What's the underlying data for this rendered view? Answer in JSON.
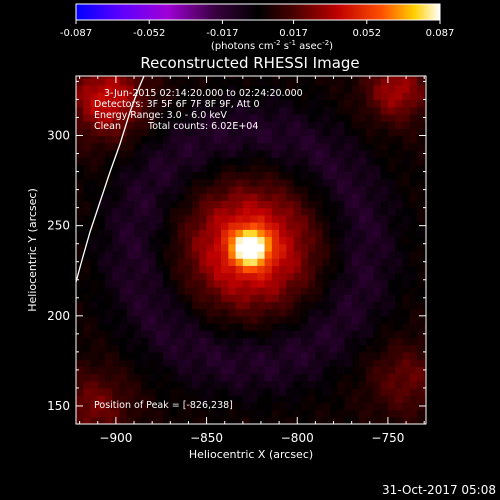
{
  "colorbar": {
    "tick_labels": [
      "-0.087",
      "-0.052",
      "-0.017",
      "0.017",
      "0.052",
      "0.087"
    ],
    "tick_values": [
      -0.087,
      -0.052,
      -0.017,
      0.017,
      0.052,
      0.087
    ],
    "unit_main": "(photons cm",
    "unit_sup1": "-2",
    "unit_mid": " s",
    "unit_sup2": "-1",
    "unit_mid2": " asec",
    "unit_sup3": "-2",
    "unit_end": ")",
    "colormap": [
      "#0000ff",
      "#5a00ff",
      "#a000d8",
      "#3a0040",
      "#000000",
      "#4a0000",
      "#c00000",
      "#ff5000",
      "#ffd000",
      "#ffffff"
    ]
  },
  "chart_data": {
    "type": "heatmap",
    "title": "Reconstructed RHESSI Image",
    "xlabel": "Heliocentric X (arcsec)",
    "ylabel": "Heliocentric Y (arcsec)",
    "xlim": [
      -922,
      -729
    ],
    "ylim": [
      140,
      333
    ],
    "x_ticks": [
      -900,
      -850,
      -800,
      -750
    ],
    "y_ticks": [
      150,
      200,
      250,
      300
    ],
    "x_tick_labels": [
      "−900",
      "−850",
      "−800",
      "−750"
    ],
    "y_tick_labels": [
      "150",
      "200",
      "250",
      "300"
    ],
    "peak": {
      "x": -826,
      "y": 238
    },
    "annotations": {
      "time_range": "3-Jun-2015 02:14:20.000 to 02:24:20.000",
      "detectors": "Detectors: 3F 5F 6F 7F 8F 9F, Att 0",
      "energy": "Energy Range: 3.0 - 6.0 keV",
      "method": "Clean",
      "counts": "Total counts: 6.02E+04",
      "peak_text": "Position of Peak = [-826,238]"
    }
  },
  "footer": {
    "timestamp": "31-Oct-2017 05:08"
  }
}
